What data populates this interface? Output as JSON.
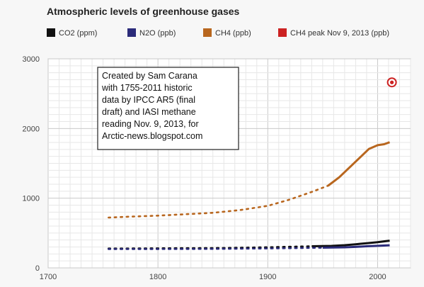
{
  "chart_data": {
    "type": "line",
    "title": "Atmospheric levels of greenhouse gases",
    "xlabel": "",
    "ylabel": "",
    "xlim": [
      1700,
      2030
    ],
    "ylim": [
      0,
      3000
    ],
    "x_ticks": [
      "1700",
      "1800",
      "1900",
      "2000"
    ],
    "y_ticks": [
      "0",
      "1000",
      "2000",
      "3000"
    ],
    "grid": true,
    "legend_position": "top",
    "legend": [
      "CO2 (ppm)",
      "N2O (ppb)",
      "CH4 (ppb)",
      "CH4 peak Nov 9, 2013 (ppb)"
    ],
    "annotation": [
      "Created by Sam Carana",
      "with 1755-2011 historic",
      "data by IPCC AR5 (final",
      "draft) and IASI methane",
      "reading Nov. 9, 2013, for",
      "Arctic-news.blogspot.com"
    ],
    "series": [
      {
        "name": "CO2 (ppm)",
        "color": "#111111",
        "x": [
          1755,
          1780,
          1800,
          1820,
          1840,
          1860,
          1880,
          1900,
          1920,
          1940,
          1958,
          1970,
          1980,
          1990,
          2000,
          2011
        ],
        "y": [
          278,
          279,
          281,
          283,
          284,
          286,
          291,
          296,
          303,
          310,
          315,
          325,
          339,
          354,
          369,
          391
        ]
      },
      {
        "name": "N2O (ppb)",
        "color": "#2b2b7a",
        "x": [
          1755,
          1800,
          1850,
          1900,
          1950,
          1970,
          1980,
          1990,
          2000,
          2011
        ],
        "y": [
          270,
          271,
          273,
          279,
          290,
          295,
          301,
          310,
          316,
          324
        ]
      },
      {
        "name": "CH4 (ppb)",
        "color": "#b8661e",
        "x": [
          1755,
          1775,
          1800,
          1825,
          1850,
          1875,
          1900,
          1920,
          1940,
          1955,
          1965,
          1975,
          1985,
          1992,
          2000,
          2006,
          2011
        ],
        "y": [
          722,
          735,
          750,
          770,
          790,
          830,
          890,
          980,
          1090,
          1180,
          1300,
          1450,
          1600,
          1705,
          1760,
          1775,
          1803
        ]
      },
      {
        "name": "CH4 peak Nov 9, 2013 (ppb)",
        "color": "#cc2222",
        "x": [
          2013
        ],
        "y": [
          2662
        ]
      }
    ]
  }
}
